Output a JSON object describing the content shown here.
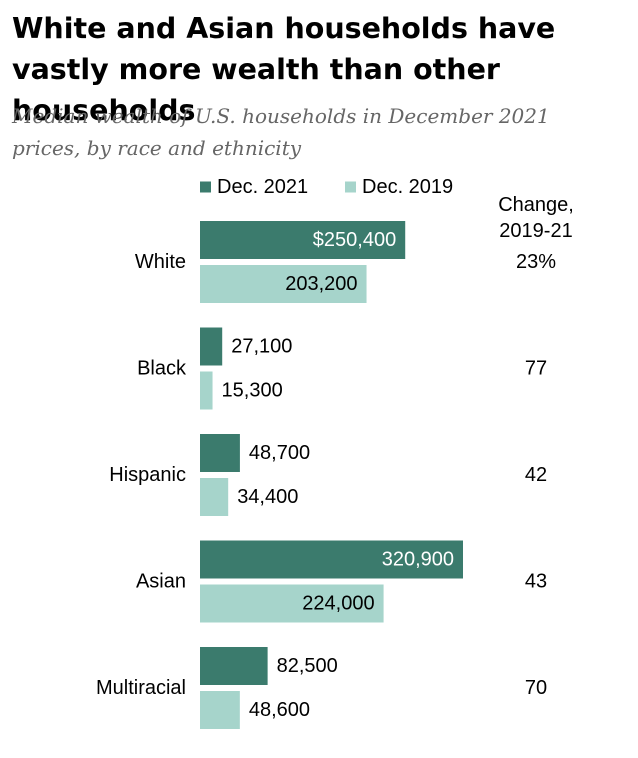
{
  "chart_data": {
    "type": "bar",
    "title": "White and Asian households have vastly more wealth than other households",
    "subtitle": "Median wealth of U.S. households in December 2021 prices, by race and ethnicity",
    "categories": [
      "White",
      "Black",
      "Hispanic",
      "Asian",
      "Multiracial"
    ],
    "series": [
      {
        "name": "Dec. 2021",
        "color": "#3b7b6d",
        "values": [
          250400,
          27100,
          48700,
          320900,
          82500
        ],
        "labels": [
          "$250,400",
          "27,100",
          "48,700",
          "320,900",
          "82,500"
        ]
      },
      {
        "name": "Dec. 2019",
        "color": "#a6d4cb",
        "values": [
          203200,
          15300,
          34400,
          224000,
          48600
        ],
        "labels": [
          "203,200",
          "15,300",
          "34,400",
          "224,000",
          "48,600"
        ]
      }
    ],
    "change": {
      "header_line1": "Change,",
      "header_line2": "2019-21",
      "values": [
        "23%",
        "77",
        "42",
        "43",
        "70"
      ]
    },
    "xlim": [
      0,
      320900
    ],
    "grid": false,
    "legend": "top"
  }
}
